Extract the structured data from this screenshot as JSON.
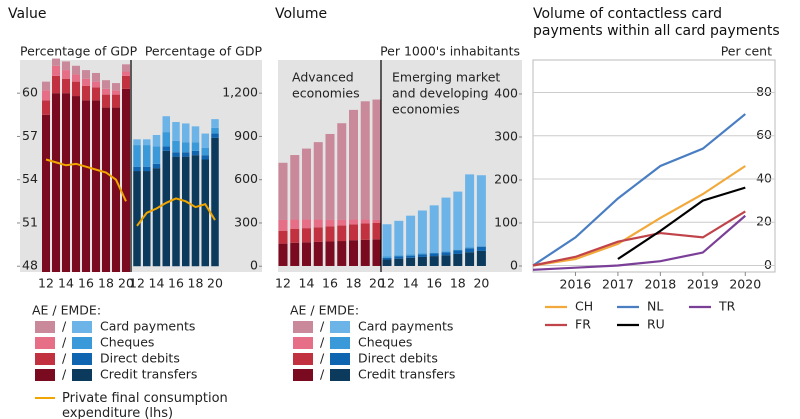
{
  "chart_data": [
    {
      "type": "bar",
      "stacked": true,
      "title": "Value",
      "ylabel": "Percentage of GDP",
      "y2label": "Percentage of GDP",
      "categories": [
        "12",
        null,
        "14",
        null,
        "16",
        null,
        "18",
        null,
        "20"
      ],
      "ylim": [
        47.6,
        62.3
      ],
      "yticks": [
        48,
        51,
        54,
        57,
        60
      ],
      "y2lim": [
        -40,
        1430
      ],
      "y2ticks": [
        0,
        300,
        600,
        900,
        {
          "value": 1200,
          "label": "1,200"
        }
      ],
      "ae_axis": "y",
      "emde_axis": "y2",
      "legend_title": "AE / EMDE:",
      "separator": "/",
      "series": [
        {
          "name": "Credit transfers",
          "colors": [
            "#7a0a1f",
            "#0b3a5c"
          ],
          "ae": [
            58.5,
            60.0,
            60.0,
            59.8,
            59.5,
            59.5,
            59.0,
            59.0,
            60.3
          ],
          "emde": [
            660,
            660,
            680,
            800,
            760,
            760,
            770,
            740,
            890
          ]
        },
        {
          "name": "Direct debits",
          "colors": [
            "#c1313f",
            "#1065b0"
          ],
          "ae": [
            1.0,
            1.2,
            1.0,
            1.0,
            1.0,
            0.9,
            0.9,
            0.9,
            0.9
          ],
          "emde": [
            30,
            30,
            30,
            30,
            30,
            30,
            30,
            30,
            30
          ]
        },
        {
          "name": "Cheques",
          "colors": [
            "#e66e86",
            "#3a9ad9"
          ],
          "ae": [
            0.7,
            0.7,
            0.6,
            0.5,
            0.5,
            0.4,
            0.4,
            0.3,
            0.3
          ],
          "emde": [
            150,
            150,
            120,
            100,
            80,
            70,
            60,
            50,
            40
          ]
        },
        {
          "name": "Card payments",
          "colors": [
            "#c9899a",
            "#6cb3e8"
          ],
          "ae": [
            0.6,
            0.5,
            0.6,
            0.6,
            0.6,
            0.6,
            0.6,
            0.5,
            0.5
          ],
          "emde": [
            40,
            40,
            80,
            110,
            130,
            130,
            110,
            100,
            60
          ]
        }
      ],
      "line": {
        "name": "Private final consumption expenditure (lhs)",
        "color": "#f0a500",
        "ae": [
          55.4,
          55.2,
          55.0,
          55.1,
          54.9,
          54.7,
          54.5,
          54.0,
          52.5
        ],
        "emde": [
          50.8,
          51.7,
          52.0,
          52.4,
          52.7,
          52.5,
          52.1,
          52.3,
          51.2
        ]
      }
    },
    {
      "type": "bar",
      "stacked": true,
      "title": "Volume",
      "ylabel": "Per 1000's inhabitants",
      "categories": [
        "12",
        null,
        "14",
        null,
        "16",
        null,
        "18",
        null,
        "20"
      ],
      "ylim": [
        -14,
        479
      ],
      "yticks": [
        0,
        100,
        200,
        300,
        400
      ],
      "ae_axis": "y",
      "emde_axis": "y",
      "annotations": [
        [
          "Advanced",
          "economies"
        ],
        [
          "Emerging market",
          "and developing",
          "economies"
        ]
      ],
      "legend_title": "AE / EMDE:",
      "separator": "/",
      "series": [
        {
          "name": "Credit transfers",
          "colors": [
            "#7a0a1f",
            "#0b3a5c"
          ],
          "ae": [
            52,
            54,
            55,
            56,
            57,
            58,
            60,
            61,
            62
          ],
          "emde": [
            15,
            17,
            19,
            21,
            23,
            25,
            28,
            32,
            35
          ]
        },
        {
          "name": "Direct debits",
          "colors": [
            "#c1313f",
            "#1065b0"
          ],
          "ae": [
            30,
            32,
            33,
            34,
            35,
            36,
            37,
            38,
            38
          ],
          "emde": [
            4,
            5,
            5,
            6,
            6,
            7,
            8,
            9,
            10
          ]
        },
        {
          "name": "Cheques",
          "colors": [
            "#e66e86",
            "#3a9ad9"
          ],
          "ae": [
            25,
            22,
            20,
            18,
            15,
            13,
            11,
            9,
            7
          ],
          "emde": [
            3,
            3,
            3,
            2,
            2,
            2,
            2,
            2,
            1
          ]
        },
        {
          "name": "Card payments",
          "colors": [
            "#c9899a",
            "#6cb3e8"
          ],
          "ae": [
            133,
            150,
            165,
            180,
            200,
            225,
            255,
            275,
            280
          ],
          "emde": [
            75,
            80,
            90,
            100,
            110,
            125,
            135,
            170,
            165
          ]
        }
      ]
    },
    {
      "type": "line",
      "title": "Volume of contactless card payments within all card payments",
      "ylabel": "Per cent",
      "x": [
        2015,
        2016,
        2017,
        2018,
        2019,
        2020
      ],
      "xlim": [
        2015,
        2020.7
      ],
      "xticks": [
        2016,
        2017,
        2018,
        2019,
        2020
      ],
      "ylim": [
        -3,
        95
      ],
      "yticks": [
        0,
        20,
        40,
        60,
        80
      ],
      "grid": true,
      "series": [
        {
          "name": "CH",
          "color": "#f2a93b",
          "values": [
            0,
            3,
            10,
            22,
            33,
            46
          ]
        },
        {
          "name": "NL",
          "color": "#4a7ec2",
          "values": [
            0,
            13,
            31,
            46,
            54,
            70
          ]
        },
        {
          "name": "TR",
          "color": "#7b3f98",
          "values": [
            -2,
            -1,
            0,
            2,
            6,
            23
          ]
        },
        {
          "name": "FR",
          "color": "#c0444a",
          "values": [
            0,
            4,
            11,
            15,
            13,
            25
          ]
        },
        {
          "name": "RU",
          "color": "#000000",
          "values": [
            null,
            null,
            3,
            16,
            30,
            36
          ]
        }
      ]
    }
  ]
}
